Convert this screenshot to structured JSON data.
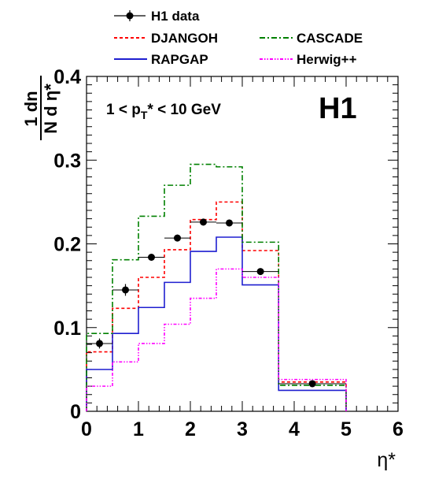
{
  "chart_data": {
    "type": "line",
    "experiment_label": "H1",
    "cut_label": {
      "prefix": "1 < p",
      "sub": "T",
      "suffix": "* < 10 GeV"
    },
    "xlabel": "η*",
    "ylabel": {
      "numerator": "1  dn",
      "denominator": "N d η*"
    },
    "xlim": [
      0,
      6
    ],
    "ylim": [
      0,
      0.4
    ],
    "x_ticks": [
      "0",
      "1",
      "2",
      "3",
      "4",
      "5",
      "6"
    ],
    "y_ticks": [
      "0",
      "0.1",
      "0.2",
      "0.3",
      "0.4"
    ],
    "bin_edges": [
      0,
      0.5,
      1.0,
      1.5,
      2.0,
      2.5,
      3.0,
      3.7,
      5.0
    ],
    "data": {
      "name": "H1 data",
      "x": [
        0.25,
        0.75,
        1.25,
        1.75,
        2.25,
        2.75,
        3.35,
        4.35
      ],
      "y": [
        0.081,
        0.145,
        0.184,
        0.207,
        0.226,
        0.225,
        0.167,
        0.033
      ],
      "yerr": [
        0.006,
        0.007,
        0.004,
        0.004,
        0.004,
        0.004,
        0.003,
        0.002
      ]
    },
    "series": [
      {
        "name": "DJANGOH",
        "color": "#ff0000",
        "style": "dashed",
        "values": [
          0.071,
          0.123,
          0.16,
          0.193,
          0.229,
          0.25,
          0.192,
          0.035
        ]
      },
      {
        "name": "RAPGAP",
        "color": "#1f1fd0",
        "style": "solid",
        "values": [
          0.05,
          0.093,
          0.124,
          0.154,
          0.191,
          0.208,
          0.151,
          0.025
        ]
      },
      {
        "name": "CASCADE",
        "color": "#008000",
        "style": "dashdot",
        "values": [
          0.093,
          0.181,
          0.233,
          0.27,
          0.295,
          0.292,
          0.202,
          0.031
        ]
      },
      {
        "name": "Herwig++",
        "color": "#ff00ff",
        "style": "dashdotdot",
        "values": [
          0.03,
          0.059,
          0.081,
          0.104,
          0.135,
          0.17,
          0.16,
          0.038
        ]
      }
    ],
    "legend_placement": "top"
  }
}
